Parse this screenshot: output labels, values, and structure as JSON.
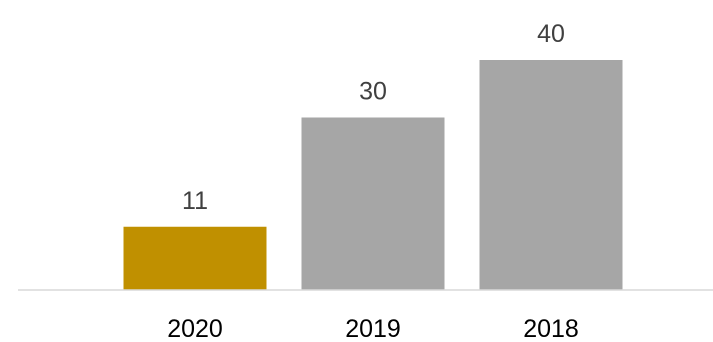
{
  "chart_data": {
    "type": "bar",
    "categories": [
      "2020",
      "2019",
      "2018"
    ],
    "values": [
      11,
      30,
      40
    ],
    "title": "",
    "xlabel": "",
    "ylabel": "",
    "ylim": [
      0,
      40
    ],
    "grid": false,
    "legend": "none",
    "data_labels": true,
    "colors": [
      "#C09000",
      "#A6A6A6",
      "#A6A6A6"
    ],
    "axis_color": "#D9D9D9"
  }
}
